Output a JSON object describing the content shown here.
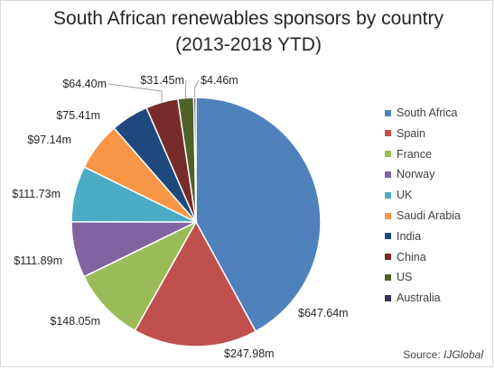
{
  "chart_data": {
    "type": "pie",
    "title": "South African renewables sponsors by country",
    "subtitle": "(2013-2018 YTD)",
    "legend_position": "right",
    "source_prefix": "Source:",
    "source_name": "IJGlobal",
    "categories": [
      "South Africa",
      "Spain",
      "France",
      "Norway",
      "UK",
      "Saudi Arabia",
      "India",
      "China",
      "US",
      "Australia"
    ],
    "values": [
      647.64,
      247.98,
      148.05,
      111.89,
      111.73,
      97.14,
      75.41,
      64.4,
      31.45,
      4.46
    ],
    "labels": [
      "$647.64m",
      "$247.98m",
      "$148.05m",
      "$111.89m",
      "$111.73m",
      "$97.14m",
      "$75.41m",
      "$64.40m",
      "$31.45m",
      "$4.46m"
    ],
    "colors": [
      "#4f81bd",
      "#c0504d",
      "#9bbb59",
      "#8064a2",
      "#4bacc6",
      "#f79646",
      "#1f497d",
      "#772c2a",
      "#4f6228",
      "#3c2f58"
    ]
  }
}
